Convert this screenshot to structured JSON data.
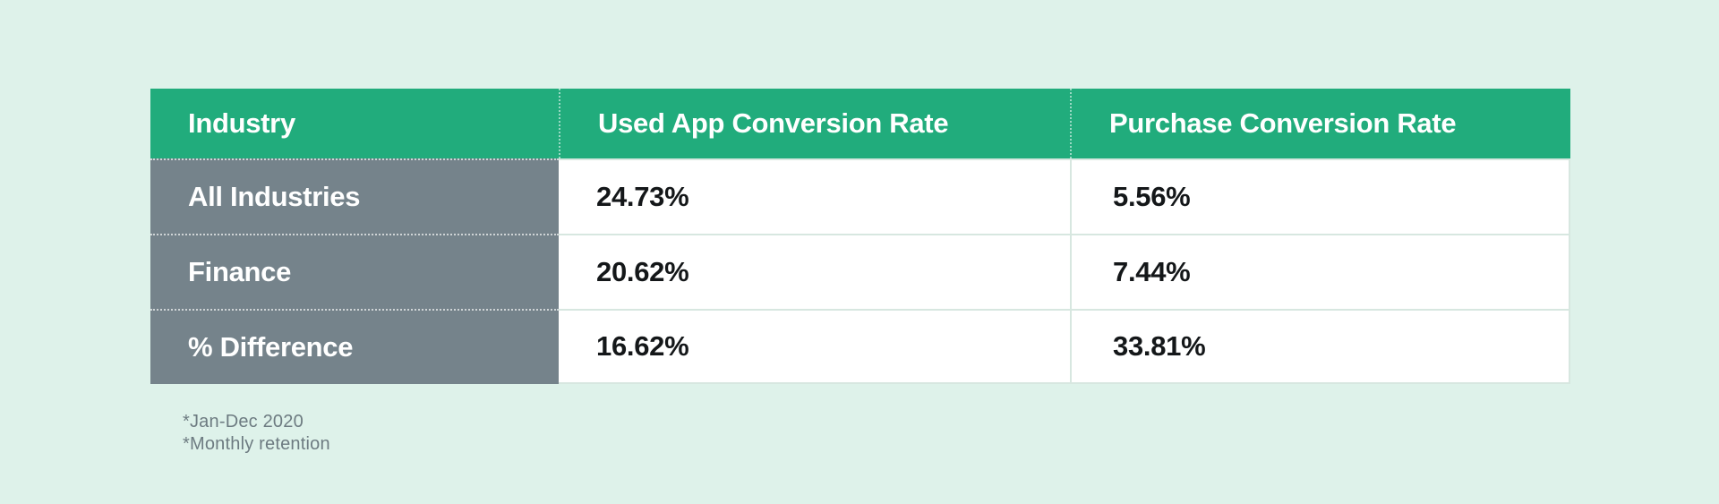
{
  "chart_data": {
    "type": "table",
    "columns": [
      "Industry",
      "Used App Conversion Rate",
      "Purchase Conversion Rate"
    ],
    "rows": [
      [
        "All Industries",
        "24.73%",
        "5.56%"
      ],
      [
        "Finance",
        "20.62%",
        "7.44%"
      ],
      [
        "% Difference",
        "16.62%",
        "33.81%"
      ]
    ],
    "footnotes": [
      "*Jan-Dec 2020",
      "*Monthly retention"
    ]
  },
  "colors": {
    "background": "#def2ea",
    "header_bg": "#21ac7c",
    "header_text": "#ffffff",
    "row_label_bg": "#75838b",
    "cell_bg": "#ffffff",
    "value_text": "#141719",
    "divider": "#d7e7e0",
    "footnote_text": "#6d7b81"
  }
}
